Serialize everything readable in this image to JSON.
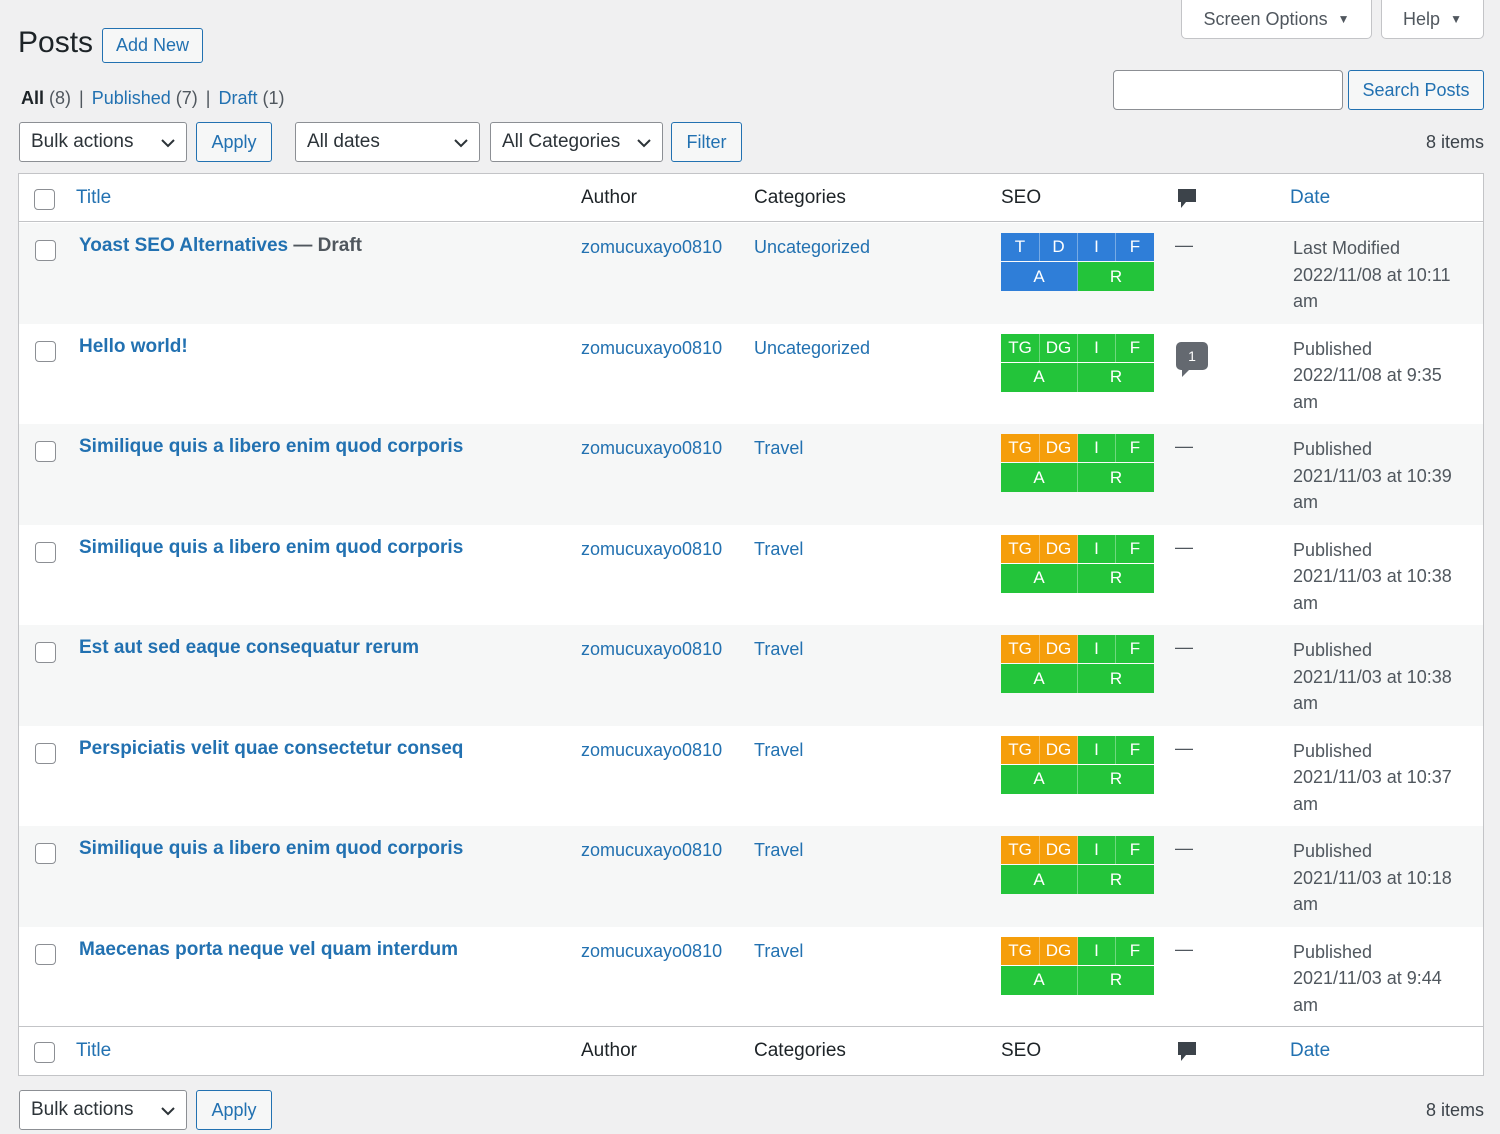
{
  "header": {
    "screen_options_label": "Screen Options",
    "help_label": "Help",
    "page_title": "Posts",
    "add_new_label": "Add New"
  },
  "filters": {
    "all_label": "All",
    "all_count": "(8)",
    "published_label": "Published",
    "published_count": "(7)",
    "draft_label": "Draft",
    "draft_count": "(1)",
    "separator": "|"
  },
  "search": {
    "placeholder": "",
    "button_label": "Search Posts"
  },
  "toolbar_top": {
    "bulk_actions": "Bulk actions",
    "apply_label": "Apply",
    "dates": "All dates",
    "categories": "All Categories",
    "filter_label": "Filter",
    "items_count": "8 items"
  },
  "columns": {
    "title": "Title",
    "author": "Author",
    "categories": "Categories",
    "seo": "SEO",
    "date": "Date"
  },
  "posts": [
    {
      "title": "Yoast SEO Alternatives",
      "state": " — Draft",
      "author": "zomucuxayo0810",
      "category": "Uncategorized",
      "seo_top": [
        {
          "label": "T",
          "color": "#2f7ed8"
        },
        {
          "label": "D",
          "color": "#2f7ed8"
        },
        {
          "label": "I",
          "color": "#2f7ed8"
        },
        {
          "label": "F",
          "color": "#2f7ed8"
        }
      ],
      "seo_bottom": [
        {
          "label": "A",
          "color": "#2f7ed8"
        },
        {
          "label": "R",
          "color": "#23c43a"
        }
      ],
      "comments": "—",
      "date_status": "Last Modified",
      "date_line1": "2022/11/08 at 10:11",
      "date_line2": "am"
    },
    {
      "title": "Hello world!",
      "state": "",
      "author": "zomucuxayo0810",
      "category": "Uncategorized",
      "seo_top": [
        {
          "label": "TG",
          "color": "#23c43a"
        },
        {
          "label": "DG",
          "color": "#23c43a"
        },
        {
          "label": "I",
          "color": "#23c43a"
        },
        {
          "label": "F",
          "color": "#23c43a"
        }
      ],
      "seo_bottom": [
        {
          "label": "A",
          "color": "#23c43a"
        },
        {
          "label": "R",
          "color": "#23c43a"
        }
      ],
      "comments": "1",
      "date_status": "Published",
      "date_line1": "2022/11/08 at 9:35",
      "date_line2": "am"
    },
    {
      "title": "Similique quis a libero enim quod corporis",
      "state": "",
      "author": "zomucuxayo0810",
      "category": "Travel",
      "seo_top": [
        {
          "label": "TG",
          "color": "#f59e0b"
        },
        {
          "label": "DG",
          "color": "#f59e0b"
        },
        {
          "label": "I",
          "color": "#23c43a"
        },
        {
          "label": "F",
          "color": "#23c43a"
        }
      ],
      "seo_bottom": [
        {
          "label": "A",
          "color": "#23c43a"
        },
        {
          "label": "R",
          "color": "#23c43a"
        }
      ],
      "comments": "—",
      "date_status": "Published",
      "date_line1": "2021/11/03 at 10:39",
      "date_line2": "am"
    },
    {
      "title": "Similique quis a libero enim quod corporis",
      "state": "",
      "author": "zomucuxayo0810",
      "category": "Travel",
      "seo_top": [
        {
          "label": "TG",
          "color": "#f59e0b"
        },
        {
          "label": "DG",
          "color": "#f59e0b"
        },
        {
          "label": "I",
          "color": "#23c43a"
        },
        {
          "label": "F",
          "color": "#23c43a"
        }
      ],
      "seo_bottom": [
        {
          "label": "A",
          "color": "#23c43a"
        },
        {
          "label": "R",
          "color": "#23c43a"
        }
      ],
      "comments": "—",
      "date_status": "Published",
      "date_line1": "2021/11/03 at 10:38",
      "date_line2": "am"
    },
    {
      "title": "Est aut sed eaque consequatur rerum",
      "state": "",
      "author": "zomucuxayo0810",
      "category": "Travel",
      "seo_top": [
        {
          "label": "TG",
          "color": "#f59e0b"
        },
        {
          "label": "DG",
          "color": "#f59e0b"
        },
        {
          "label": "I",
          "color": "#23c43a"
        },
        {
          "label": "F",
          "color": "#23c43a"
        }
      ],
      "seo_bottom": [
        {
          "label": "A",
          "color": "#23c43a"
        },
        {
          "label": "R",
          "color": "#23c43a"
        }
      ],
      "comments": "—",
      "date_status": "Published",
      "date_line1": "2021/11/03 at 10:38",
      "date_line2": "am"
    },
    {
      "title": "Perspiciatis velit quae consectetur conseq",
      "state": "",
      "author": "zomucuxayo0810",
      "category": "Travel",
      "seo_top": [
        {
          "label": "TG",
          "color": "#f59e0b"
        },
        {
          "label": "DG",
          "color": "#f59e0b"
        },
        {
          "label": "I",
          "color": "#23c43a"
        },
        {
          "label": "F",
          "color": "#23c43a"
        }
      ],
      "seo_bottom": [
        {
          "label": "A",
          "color": "#23c43a"
        },
        {
          "label": "R",
          "color": "#23c43a"
        }
      ],
      "comments": "—",
      "date_status": "Published",
      "date_line1": "2021/11/03 at 10:37",
      "date_line2": "am"
    },
    {
      "title": "Similique quis a libero enim quod corporis",
      "state": "",
      "author": "zomucuxayo0810",
      "category": "Travel",
      "seo_top": [
        {
          "label": "TG",
          "color": "#f59e0b"
        },
        {
          "label": "DG",
          "color": "#f59e0b"
        },
        {
          "label": "I",
          "color": "#23c43a"
        },
        {
          "label": "F",
          "color": "#23c43a"
        }
      ],
      "seo_bottom": [
        {
          "label": "A",
          "color": "#23c43a"
        },
        {
          "label": "R",
          "color": "#23c43a"
        }
      ],
      "comments": "—",
      "date_status": "Published",
      "date_line1": "2021/11/03 at 10:18",
      "date_line2": "am"
    },
    {
      "title": "Maecenas porta neque vel quam interdum",
      "state": "",
      "author": "zomucuxayo0810",
      "category": "Travel",
      "seo_top": [
        {
          "label": "TG",
          "color": "#f59e0b"
        },
        {
          "label": "DG",
          "color": "#f59e0b"
        },
        {
          "label": "I",
          "color": "#23c43a"
        },
        {
          "label": "F",
          "color": "#23c43a"
        }
      ],
      "seo_bottom": [
        {
          "label": "A",
          "color": "#23c43a"
        },
        {
          "label": "R",
          "color": "#23c43a"
        }
      ],
      "comments": "—",
      "date_status": "Published",
      "date_line1": "2021/11/03 at 9:44",
      "date_line2": "am"
    }
  ],
  "toolbar_bottom": {
    "bulk_actions": "Bulk actions",
    "apply_label": "Apply",
    "items_count": "8 items"
  },
  "icons": {
    "comment": "comment-bubble-icon",
    "dropdown": "chevron-down-icon",
    "tab_arrow": "triangle-down-icon"
  }
}
